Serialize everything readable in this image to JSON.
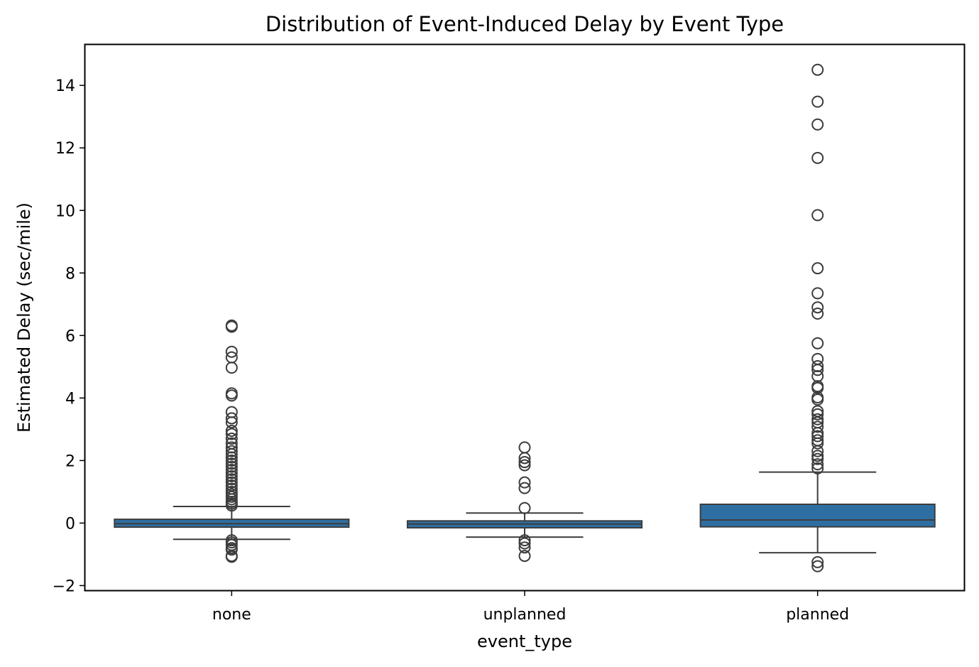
{
  "chart_data": {
    "type": "box",
    "title": "Distribution of Event-Induced Delay by Event Type",
    "xlabel": "event_type",
    "ylabel": "Estimated Delay (sec/mile)",
    "ylim": [
      -2.15,
      15.3
    ],
    "yticks": [
      -2,
      0,
      2,
      4,
      6,
      8,
      10,
      12,
      14
    ],
    "ytick_labels": [
      "−2",
      "0",
      "2",
      "4",
      "6",
      "8",
      "10",
      "12",
      "14"
    ],
    "grid": false,
    "legend": "none",
    "box_color": "#2e6fa3",
    "edge_color": "#3d3d3d",
    "categories": [
      "none",
      "unplanned",
      "planned"
    ],
    "boxes": [
      {
        "category": "none",
        "whisker_low": -0.52,
        "q1": -0.13,
        "median": -0.02,
        "q3": 0.12,
        "whisker_high": 0.53,
        "outliers": [
          6.32,
          6.28,
          5.48,
          5.3,
          4.97,
          4.15,
          4.08,
          3.55,
          3.35,
          3.22,
          2.95,
          2.85,
          2.7,
          2.55,
          2.42,
          2.3,
          2.2,
          2.1,
          2.0,
          1.9,
          1.8,
          1.7,
          1.6,
          1.5,
          1.4,
          1.3,
          1.2,
          1.1,
          1.0,
          0.92,
          0.84,
          0.76,
          0.68,
          0.62,
          0.56,
          -0.55,
          -0.62,
          -0.7,
          -0.8,
          -0.85,
          -1.05,
          -1.08
        ]
      },
      {
        "category": "unplanned",
        "whisker_low": -0.45,
        "q1": -0.15,
        "median": -0.03,
        "q3": 0.07,
        "whisker_high": 0.32,
        "outliers": [
          2.42,
          2.08,
          1.95,
          1.85,
          1.3,
          1.12,
          0.48,
          -0.55,
          -0.65,
          -0.78,
          -1.05
        ]
      },
      {
        "category": "planned",
        "whisker_low": -0.95,
        "q1": -0.12,
        "median": 0.1,
        "q3": 0.6,
        "whisker_high": 1.63,
        "outliers": [
          14.5,
          13.48,
          12.75,
          11.68,
          9.85,
          8.15,
          7.35,
          6.9,
          6.7,
          5.75,
          5.25,
          5.02,
          4.9,
          4.7,
          4.38,
          4.32,
          4.02,
          3.95,
          3.58,
          3.48,
          3.32,
          3.22,
          3.08,
          2.88,
          2.78,
          2.65,
          2.55,
          2.3,
          2.15,
          2.05,
          1.88,
          1.75,
          -1.25,
          -1.38
        ]
      }
    ]
  }
}
